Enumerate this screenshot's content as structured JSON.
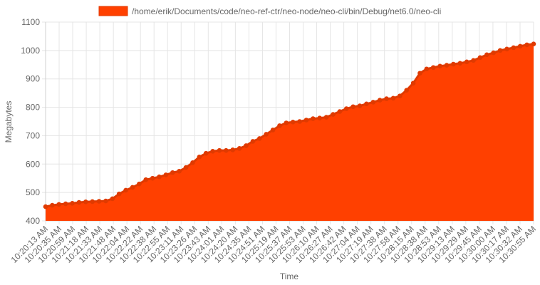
{
  "chart_data": {
    "type": "area",
    "legend": {
      "position": "top"
    },
    "series": [
      {
        "name": "/home/erik/Documents/code/neo-ref-ctr/neo-node/neo-cli/bin/Debug/net6.0/neo-cli",
        "color": "#ff4000",
        "border_color": "#e03a00"
      }
    ],
    "xlabel": "Time",
    "ylabel": "Megabytes",
    "ylim": [
      400,
      1100
    ],
    "yticks": [
      400,
      500,
      600,
      700,
      800,
      900,
      1000,
      1100
    ],
    "grid": true,
    "xticks": [
      "10:20:13 AM",
      "10:20:35 AM",
      "10:20:59 AM",
      "10:21:18 AM",
      "10:21:33 AM",
      "10:21:48 AM",
      "10:22:04 AM",
      "10:22:22 AM",
      "10:22:38 AM",
      "10:22:55 AM",
      "10:23:11 AM",
      "10:23:26 AM",
      "10:23:43 AM",
      "10:24:01 AM",
      "10:24:20 AM",
      "10:24:35 AM",
      "10:24:51 AM",
      "10:25:19 AM",
      "10:25:37 AM",
      "10:25:53 AM",
      "10:26:10 AM",
      "10:26:27 AM",
      "10:26:42 AM",
      "10:27:04 AM",
      "10:27:19 AM",
      "10:27:38 AM",
      "10:27:58 AM",
      "10:28:15 AM",
      "10:28:38 AM",
      "10:28:53 AM",
      "10:29:13 AM",
      "10:29:29 AM",
      "10:29:45 AM",
      "10:30:00 AM",
      "10:30:17 AM",
      "10:30:32 AM",
      "10:30:55 AM"
    ],
    "values": [
      450,
      455,
      458,
      460,
      462,
      465,
      467,
      468,
      469,
      470,
      478,
      495,
      508,
      518,
      530,
      545,
      550,
      555,
      562,
      570,
      575,
      588,
      605,
      625,
      638,
      645,
      648,
      648,
      650,
      655,
      665,
      680,
      690,
      705,
      720,
      735,
      745,
      748,
      750,
      755,
      760,
      762,
      765,
      775,
      785,
      795,
      802,
      805,
      812,
      818,
      825,
      830,
      832,
      840,
      860,
      885,
      920,
      935,
      940,
      945,
      948,
      952,
      955,
      960,
      965,
      975,
      985,
      992,
      1000,
      1005,
      1010,
      1015,
      1020,
      1023
    ]
  }
}
